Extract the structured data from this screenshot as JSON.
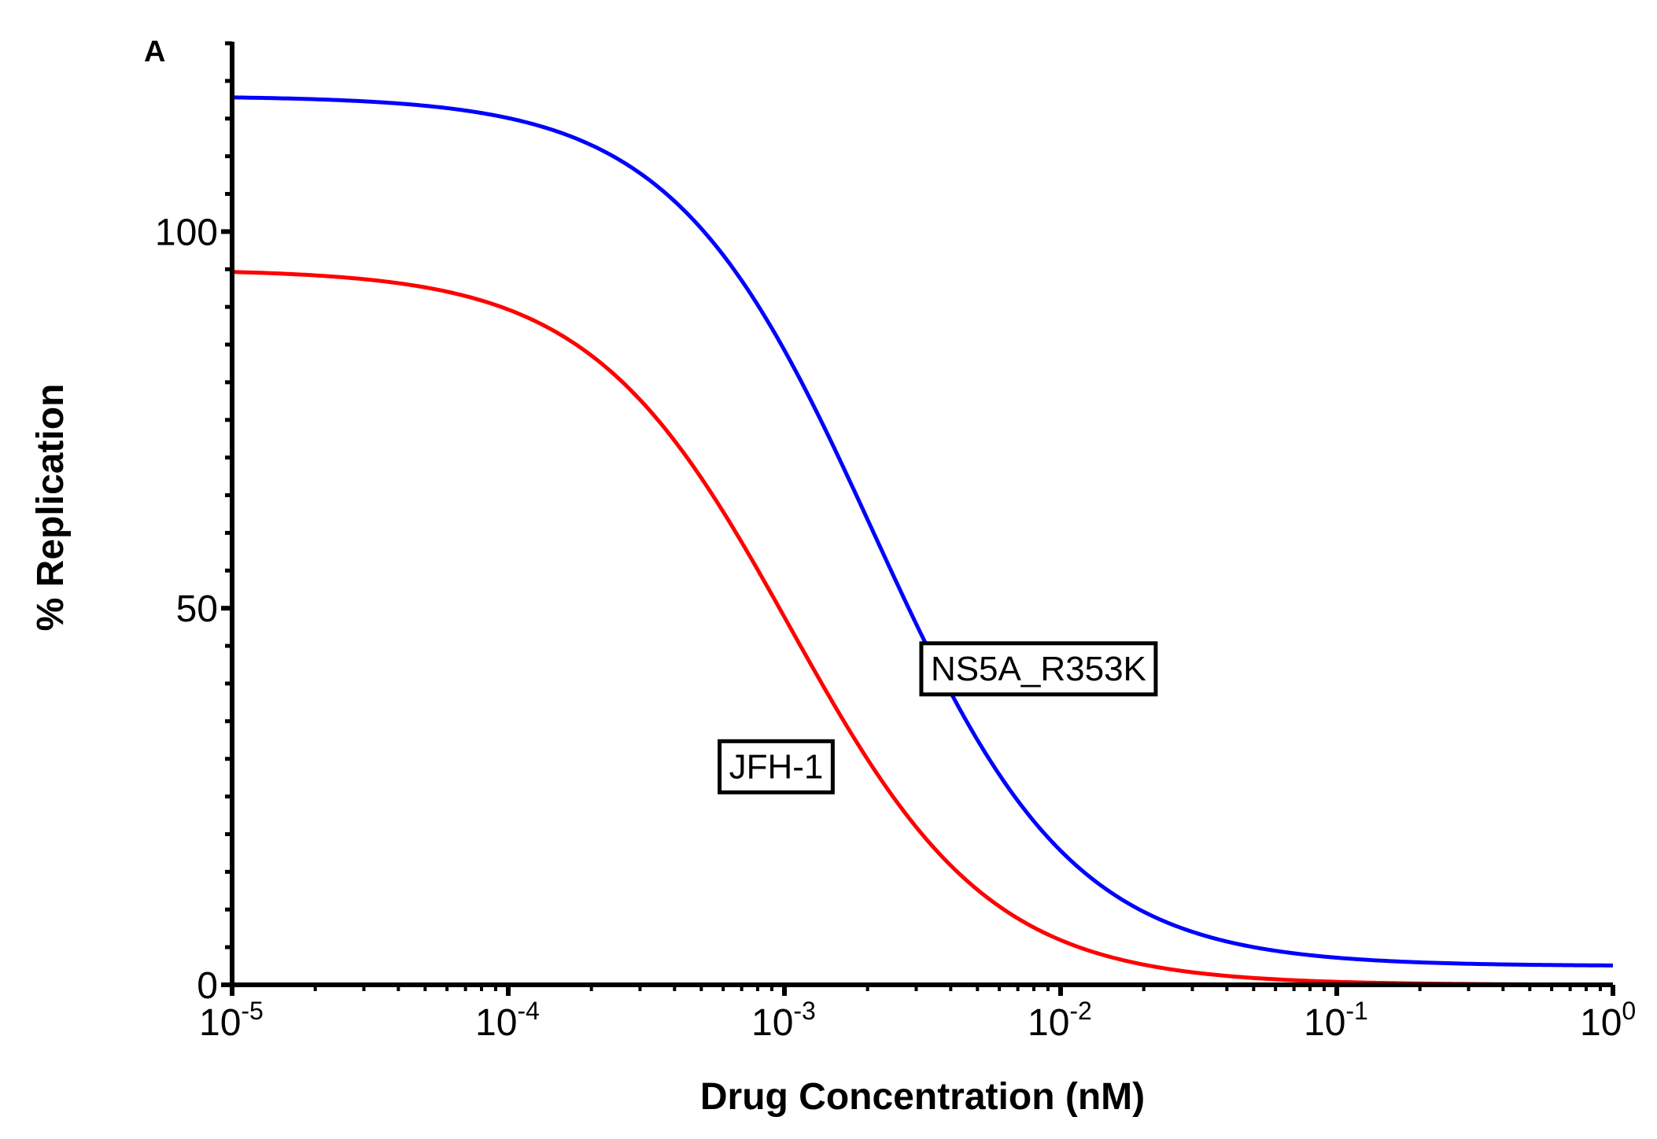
{
  "panel_label": "A",
  "colors": {
    "axis": "#000000",
    "ns5a": "#0000ff",
    "jfh1": "#ff0000",
    "background": "#ffffff"
  },
  "chart_data": {
    "type": "line",
    "title": "",
    "xlabel": "Drug Concentration (nM)",
    "ylabel": "% Replication",
    "xscale": "log10",
    "xlim_exponents": [
      -5,
      0
    ],
    "ylim": [
      0,
      125
    ],
    "x_ticks": [
      {
        "base": "10",
        "exp": "-5"
      },
      {
        "base": "10",
        "exp": "-4"
      },
      {
        "base": "10",
        "exp": "-3"
      },
      {
        "base": "10",
        "exp": "-2"
      },
      {
        "base": "10",
        "exp": "-1"
      },
      {
        "base": "10",
        "exp": "0"
      }
    ],
    "y_ticks": [
      "0",
      "50",
      "100"
    ],
    "y_tick_values": [
      0,
      50,
      100
    ],
    "y_minor_step": 5,
    "grid": false,
    "legend": "none",
    "series": [
      {
        "name": "NS5A_R353K",
        "color": "#0000ff",
        "model": "four-parameter logistic",
        "top": 118,
        "bottom": 2.5,
        "log_ec50": -2.68,
        "hill": 1.2,
        "annotation": {
          "text": "NS5A_R353K",
          "anchor_log_x": -2.08,
          "anchor_y": 42
        }
      },
      {
        "name": "JFH-1",
        "color": "#ff0000",
        "model": "four-parameter logistic",
        "top": 95,
        "bottom": 0,
        "log_ec50": -2.98,
        "hill": 1.2,
        "annotation": {
          "text": "JFH-1",
          "anchor_log_x": -3.03,
          "anchor_y": 29
        }
      }
    ]
  }
}
